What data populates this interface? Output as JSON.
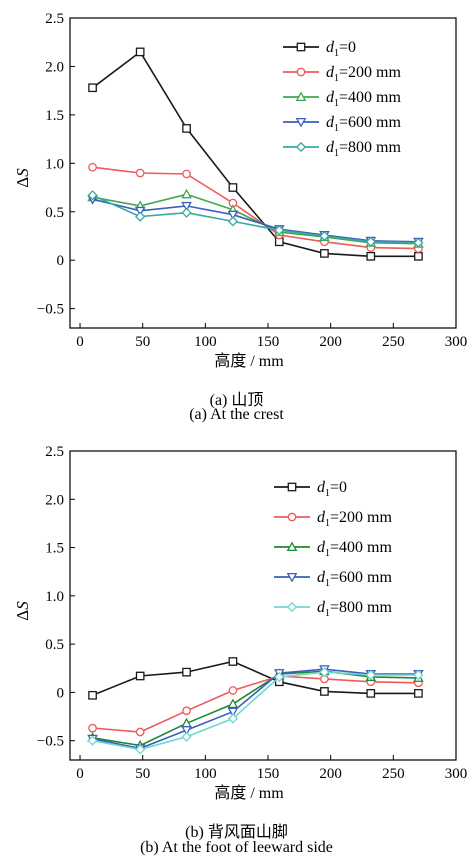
{
  "chart_data": [
    {
      "panel": "a",
      "type": "line",
      "xlabel": "高度 / mm",
      "ylabel": "ΔS",
      "xlim": [
        -8,
        300
      ],
      "ylim": [
        -0.7,
        2.5
      ],
      "xticks": [
        0,
        50,
        100,
        150,
        200,
        250,
        300
      ],
      "yticks": [
        -0.5,
        0,
        0.5,
        1.0,
        1.5,
        2.0,
        2.5
      ],
      "ytick_labels": [
        "−0.5",
        "0",
        "0.5",
        "1.0",
        "1.5",
        "2.0",
        "2.5"
      ],
      "x": [
        10,
        48,
        85,
        122,
        159,
        195,
        232,
        270
      ],
      "legend_position": "top-right",
      "caption_cn": "(a) 山顶",
      "caption_en": "(a) At the crest",
      "series": [
        {
          "name": "d1=0",
          "sub_prefix": "d",
          "sub": "1",
          "suffix": "=0",
          "color": "#1a1a1a",
          "marker": "square",
          "values": [
            1.78,
            2.15,
            1.36,
            0.75,
            0.19,
            0.07,
            0.04,
            0.04
          ]
        },
        {
          "name": "d1=200 mm",
          "sub_prefix": "d",
          "sub": "1",
          "suffix": "=200 mm",
          "color": "#ef5a5a",
          "marker": "circle",
          "values": [
            0.96,
            0.9,
            0.89,
            0.59,
            0.26,
            0.19,
            0.13,
            0.12
          ]
        },
        {
          "name": "d1=400 mm",
          "sub_prefix": "d",
          "sub": "1",
          "suffix": "=400 mm",
          "color": "#3fa84a",
          "marker": "triangle-up",
          "values": [
            0.65,
            0.56,
            0.68,
            0.52,
            0.29,
            0.24,
            0.18,
            0.17
          ]
        },
        {
          "name": "d1=600 mm",
          "sub_prefix": "d",
          "sub": "1",
          "suffix": "=600 mm",
          "color": "#3a5fc2",
          "marker": "triangle-down",
          "values": [
            0.63,
            0.51,
            0.56,
            0.47,
            0.32,
            0.26,
            0.2,
            0.19
          ]
        },
        {
          "name": "d1=800 mm",
          "sub_prefix": "d",
          "sub": "1",
          "suffix": "=800 mm",
          "color": "#3aa7a0",
          "marker": "diamond",
          "values": [
            0.67,
            0.45,
            0.49,
            0.4,
            0.31,
            0.25,
            0.19,
            0.18
          ]
        }
      ]
    },
    {
      "panel": "b",
      "type": "line",
      "xlabel": "高度 / mm",
      "ylabel": "ΔS",
      "xlim": [
        -8,
        300
      ],
      "ylim": [
        -0.7,
        2.5
      ],
      "xticks": [
        0,
        50,
        100,
        150,
        200,
        250,
        300
      ],
      "yticks": [
        -0.5,
        0,
        0.5,
        1.0,
        1.5,
        2.0,
        2.5
      ],
      "ytick_labels": [
        "−0.5",
        "0",
        "0.5",
        "1.0",
        "1.5",
        "2.0",
        "2.5"
      ],
      "x": [
        10,
        48,
        85,
        122,
        159,
        195,
        232,
        270
      ],
      "legend_position": "top-right",
      "caption_cn": "(b) 背风面山脚",
      "caption_en": "(b) At the foot of leeward side",
      "series": [
        {
          "name": "d1=0",
          "sub_prefix": "d",
          "sub": "1",
          "suffix": "=0",
          "color": "#1a1a1a",
          "marker": "square",
          "values": [
            -0.03,
            0.17,
            0.21,
            0.32,
            0.11,
            0.01,
            -0.01,
            -0.01
          ]
        },
        {
          "name": "d1=200 mm",
          "sub_prefix": "d",
          "sub": "1",
          "suffix": "=200 mm",
          "color": "#ef5a5a",
          "marker": "circle",
          "values": [
            -0.37,
            -0.41,
            -0.19,
            0.02,
            0.17,
            0.14,
            0.11,
            0.1
          ]
        },
        {
          "name": "d1=400 mm",
          "sub_prefix": "d",
          "sub": "1",
          "suffix": "=400 mm",
          "color": "#1f8a2f",
          "marker": "triangle-up",
          "values": [
            -0.47,
            -0.55,
            -0.32,
            -0.12,
            0.19,
            0.22,
            0.16,
            0.15
          ]
        },
        {
          "name": "d1=600 mm",
          "sub_prefix": "d",
          "sub": "1",
          "suffix": "=600 mm",
          "color": "#3a5fc2",
          "marker": "triangle-down",
          "values": [
            -0.48,
            -0.58,
            -0.39,
            -0.2,
            0.2,
            0.24,
            0.19,
            0.19
          ]
        },
        {
          "name": "d1=800 mm",
          "sub_prefix": "d",
          "sub": "1",
          "suffix": "=800 mm",
          "color": "#6fd6d0",
          "marker": "diamond",
          "values": [
            -0.5,
            -0.59,
            -0.46,
            -0.27,
            0.16,
            0.21,
            0.18,
            0.18
          ]
        }
      ]
    }
  ]
}
